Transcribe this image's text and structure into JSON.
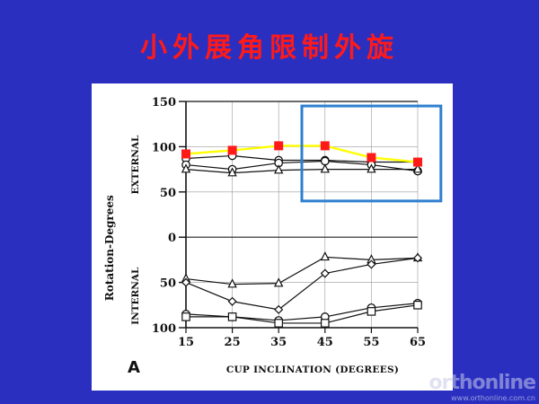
{
  "slide": {
    "title": "小外展角限制外旋"
  },
  "watermark": {
    "brand": "orthonline",
    "url": "www.orthonline.com.cn"
  },
  "chart_data": {
    "type": "line",
    "panel_label": "A",
    "xlabel": "CUP INCLINATION (DEGREES)",
    "ylabel": "Rotation-Degrees",
    "region_labels": {
      "upper": "EXTERNAL",
      "lower": "INTERNAL"
    },
    "x": [
      15,
      25,
      35,
      45,
      55,
      65
    ],
    "y_ticks_external": [
      150,
      100,
      50,
      0
    ],
    "y_ticks_internal": [
      50,
      100
    ],
    "ylim": [
      -100,
      150
    ],
    "grid": true,
    "series": [
      {
        "marker": "circle",
        "region": "external",
        "values": [
          87,
          90,
          85,
          85,
          83,
          83
        ]
      },
      {
        "marker": "circle-open",
        "region": "external",
        "values": [
          80,
          75,
          82,
          84,
          80,
          73
        ]
      },
      {
        "marker": "triangle",
        "region": "external",
        "values": [
          75,
          71,
          74,
          75,
          75,
          75
        ]
      },
      {
        "marker": "square-red",
        "region": "external",
        "highlight": true,
        "color": "#ff1a1a",
        "line_color": "#ffff00",
        "values": [
          92,
          96,
          101,
          101,
          88,
          83
        ]
      },
      {
        "marker": "triangle",
        "region": "internal",
        "values": [
          -46,
          -52,
          -51,
          -22,
          -25,
          -23
        ]
      },
      {
        "marker": "diamond",
        "region": "internal",
        "values": [
          -50,
          -71,
          -80,
          -40,
          -30,
          -23
        ]
      },
      {
        "marker": "circle-open",
        "region": "internal",
        "values": [
          -85,
          -88,
          -92,
          -88,
          -78,
          -73
        ]
      },
      {
        "marker": "square",
        "region": "internal",
        "values": [
          -88,
          -88,
          -95,
          -95,
          -82,
          -75
        ]
      }
    ],
    "highlight_box": {
      "x_range": [
        40,
        70
      ],
      "y_range": [
        40,
        145
      ],
      "color": "#2e7fd0"
    }
  }
}
